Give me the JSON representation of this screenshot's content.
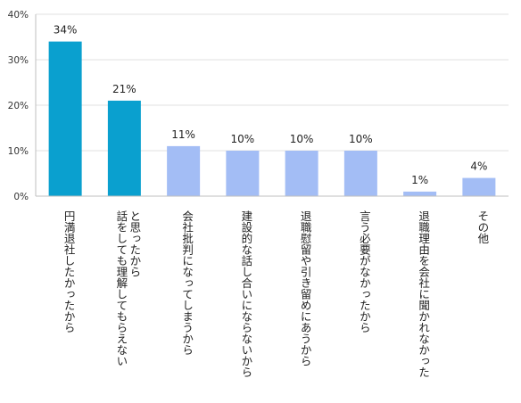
{
  "chart_data": {
    "type": "bar",
    "categories": [
      "円満退社したかったから",
      "話をしても理解してもらえないと思ったから",
      "会社批判になってしまうから",
      "建設的な話し合いにならないから",
      "退職慰留や引き留めにあうから",
      "言う必要がなかったから",
      "退職理由を会社に聞かれなかった",
      "その他"
    ],
    "category_lines": [
      [
        "円満退社したかったから"
      ],
      [
        "話をしても理解してもらえない",
        "と思ったから"
      ],
      [
        "会社批判になってしまうから"
      ],
      [
        "建設的な話し合いにならないから"
      ],
      [
        "退職慰留や引き留めにあうから"
      ],
      [
        "言う必要がなかったから"
      ],
      [
        "退職理由を会社に聞かれなかった"
      ],
      [
        "その他"
      ]
    ],
    "values": [
      34,
      21,
      11,
      10,
      10,
      10,
      1,
      4
    ],
    "data_labels": [
      "34%",
      "21%",
      "11%",
      "10%",
      "10%",
      "10%",
      "1%",
      "4%"
    ],
    "bar_colors": [
      "#0aa0cf",
      "#0aa0cf",
      "#a3bdf5",
      "#a3bdf5",
      "#a3bdf5",
      "#a3bdf5",
      "#a3bdf5",
      "#a3bdf5"
    ],
    "ylim": [
      0,
      40
    ],
    "yticks": [
      0,
      10,
      20,
      30,
      40
    ],
    "ytick_labels": [
      "0%",
      "10%",
      "20%",
      "30%",
      "40%"
    ],
    "grid": true,
    "grid_color": "#e0e0e0",
    "axis_color": "#bfbfbf",
    "title": "",
    "xlabel": "",
    "ylabel": ""
  }
}
